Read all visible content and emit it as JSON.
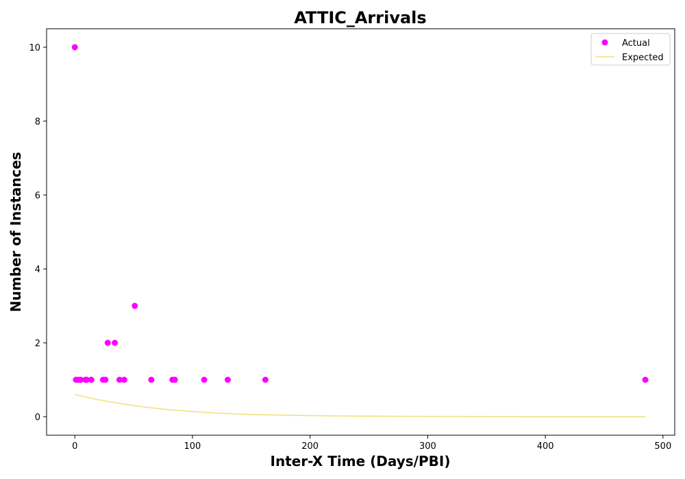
{
  "chart_data": {
    "type": "scatter",
    "title": "ATTIC_Arrivals",
    "xlabel": "Inter-X Time (Days/PBI)",
    "ylabel": "Number of Instances",
    "xlim": [
      -24,
      510
    ],
    "ylim": [
      -0.5,
      10.5
    ],
    "xticks": [
      0,
      100,
      200,
      300,
      400,
      500
    ],
    "yticks": [
      0,
      2,
      4,
      6,
      8,
      10
    ],
    "grid": false,
    "legend_position": "upper right",
    "series": [
      {
        "name": "Actual",
        "kind": "scatter",
        "color": "#ff00ff",
        "points": [
          [
            0,
            10
          ],
          [
            1,
            1
          ],
          [
            3,
            1
          ],
          [
            5,
            1
          ],
          [
            9,
            1
          ],
          [
            10,
            1
          ],
          [
            14,
            1
          ],
          [
            24,
            1
          ],
          [
            26,
            1
          ],
          [
            28,
            2
          ],
          [
            34,
            2
          ],
          [
            38,
            1
          ],
          [
            42,
            1
          ],
          [
            51,
            3
          ],
          [
            65,
            1
          ],
          [
            83,
            1
          ],
          [
            85,
            1
          ],
          [
            110,
            1
          ],
          [
            130,
            1
          ],
          [
            162,
            1
          ],
          [
            485,
            1
          ]
        ]
      },
      {
        "name": "Expected",
        "kind": "line",
        "color": "#f0e68c",
        "points": [
          [
            0,
            0.6
          ],
          [
            20,
            0.46
          ],
          [
            40,
            0.35
          ],
          [
            60,
            0.26
          ],
          [
            80,
            0.19
          ],
          [
            100,
            0.14
          ],
          [
            120,
            0.1
          ],
          [
            150,
            0.06
          ],
          [
            200,
            0.03
          ],
          [
            250,
            0.015
          ],
          [
            300,
            0.008
          ],
          [
            350,
            0.004
          ],
          [
            400,
            0.002
          ],
          [
            450,
            0.001
          ],
          [
            485,
            0.0
          ]
        ]
      }
    ]
  }
}
